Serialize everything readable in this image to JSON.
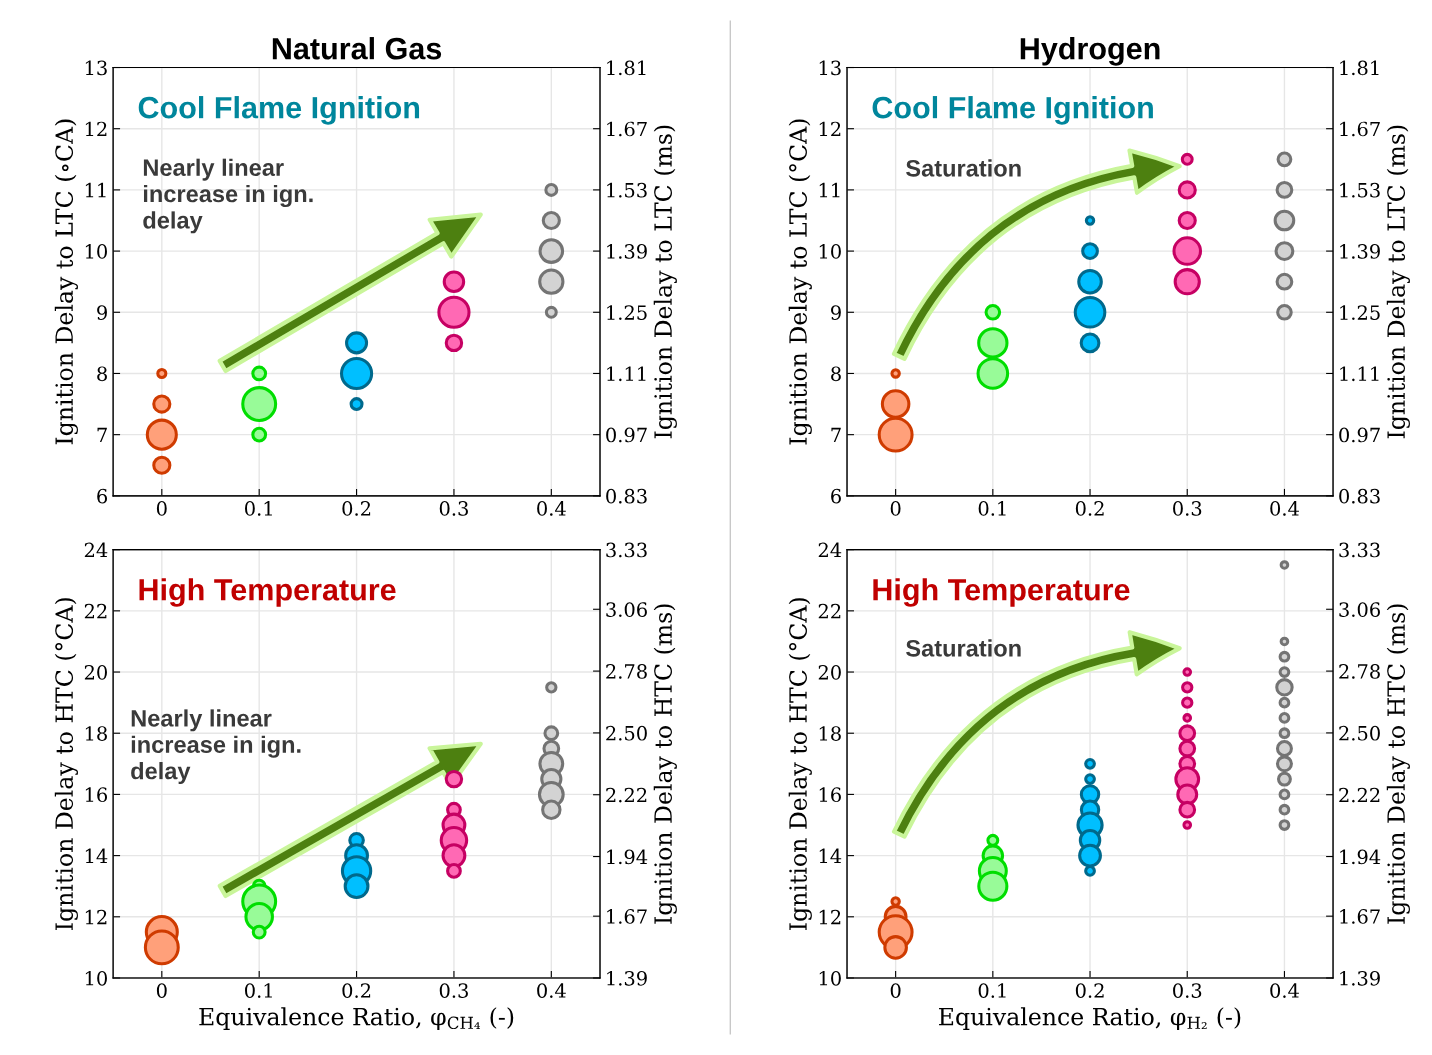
{
  "chart_data": [
    {
      "type": "bubble",
      "title": "Natural Gas",
      "ylabel": "Ignition Delay to LTC (∘CA)",
      "y2label": "Ignition Delay to LTC (ms)",
      "annotations": [
        "Cool Flame Ignition",
        "Nearly linear\nincrease in ign.\ndelay"
      ],
      "xlim": [
        -0.05,
        0.45
      ],
      "xticks": [
        0,
        0.1,
        0.2,
        0.3,
        0.4
      ],
      "ylim": [
        6,
        13
      ],
      "yticks": [
        6,
        7,
        8,
        9,
        10,
        11,
        12,
        13
      ],
      "y2lim": [
        0.83,
        1.81
      ],
      "y2ticks": [
        {
          "value": 0.83,
          "label": "0.83"
        },
        {
          "value": 0.97,
          "label": "0.97"
        },
        {
          "value": 1.11,
          "label": "1.11"
        },
        {
          "value": 1.25,
          "label": "1.25"
        },
        {
          "value": 1.39,
          "label": "1.39"
        },
        {
          "value": 1.53,
          "label": "1.53"
        },
        {
          "value": 1.67,
          "label": "1.67"
        },
        {
          "value": 1.81,
          "label": "1.81"
        }
      ],
      "grid": true,
      "series": [
        {
          "color": "#ffa07a",
          "x": [
            0,
            0,
            0,
            0
          ],
          "values": [
            8,
            7.5,
            7,
            6.5
          ],
          "sizes": [
            0.06,
            0.24,
            0.78,
            0.24
          ]
        },
        {
          "color": "#98fb98",
          "x": [
            0.1,
            0.1,
            0.1
          ],
          "values": [
            8,
            7.5,
            7
          ],
          "sizes": [
            0.15,
            1,
            0.15
          ]
        },
        {
          "color": "#00bfff",
          "x": [
            0.2,
            0.2,
            0.2
          ],
          "values": [
            8.5,
            8,
            7.5
          ],
          "sizes": [
            0.37,
            0.84,
            0.11
          ]
        },
        {
          "color": "#ff69b4",
          "x": [
            0.3,
            0.3,
            0.3
          ],
          "values": [
            9.5,
            9,
            8.5
          ],
          "sizes": [
            0.35,
            0.84,
            0.22
          ]
        },
        {
          "color": "#d3d3d3",
          "x": [
            0.4,
            0.4,
            0.4,
            0.4,
            0.4
          ],
          "values": [
            11,
            10.5,
            10,
            9.5,
            9
          ],
          "sizes": [
            0.11,
            0.24,
            0.47,
            0.5,
            0.09
          ]
        }
      ]
    },
    {
      "type": "bubble",
      "title": "Hydrogen",
      "ylabel": "Ignition Delay to LTC (°CA)",
      "y2label": "Ignition Delay to LTC (ms)",
      "annotations": [
        "Cool Flame Ignition",
        "Saturation"
      ],
      "xlim": [
        -0.05,
        0.45
      ],
      "xticks": [
        0,
        0.1,
        0.2,
        0.3,
        0.4
      ],
      "ylim": [
        6,
        13
      ],
      "yticks": [
        6,
        7,
        8,
        9,
        10,
        11,
        12,
        13
      ],
      "y2lim": [
        0.83,
        1.81
      ],
      "y2ticks": [
        {
          "value": 0.83,
          "label": "0.83"
        },
        {
          "value": 0.97,
          "label": "0.97"
        },
        {
          "value": 1.11,
          "label": "1.11"
        },
        {
          "value": 1.25,
          "label": "1.25"
        },
        {
          "value": 1.39,
          "label": "1.39"
        },
        {
          "value": 1.53,
          "label": "1.53"
        },
        {
          "value": 1.67,
          "label": "1.67"
        },
        {
          "value": 1.81,
          "label": "1.81"
        }
      ],
      "grid": true,
      "series": [
        {
          "color": "#ffa07a",
          "x": [
            0,
            0,
            0
          ],
          "values": [
            8,
            7.5,
            7
          ],
          "sizes": [
            0.05,
            0.65,
            1
          ]
        },
        {
          "color": "#98fb98",
          "x": [
            0.1,
            0.1,
            0.1
          ],
          "values": [
            9,
            8.5,
            8
          ],
          "sizes": [
            0.17,
            0.74,
            0.81
          ]
        },
        {
          "color": "#00bfff",
          "x": [
            0.2,
            0.2,
            0.2,
            0.2,
            0.2
          ],
          "values": [
            10.5,
            10,
            9.5,
            9,
            8.5
          ],
          "sizes": [
            0.05,
            0.2,
            0.47,
            0.81,
            0.29
          ]
        },
        {
          "color": "#ff69b4",
          "x": [
            0.3,
            0.3,
            0.3,
            0.3,
            0.3
          ],
          "values": [
            11.5,
            11,
            10.5,
            10,
            9.5
          ],
          "sizes": [
            0.09,
            0.24,
            0.24,
            0.65,
            0.54
          ]
        },
        {
          "color": "#d3d3d3",
          "x": [
            0.4,
            0.4,
            0.4,
            0.4,
            0.4,
            0.4
          ],
          "values": [
            11.5,
            11,
            10.5,
            10,
            9.5,
            9
          ],
          "sizes": [
            0.15,
            0.2,
            0.32,
            0.26,
            0.2,
            0.17
          ]
        }
      ]
    },
    {
      "type": "bubble",
      "ylabel": "Ignition Delay to HTC (°CA)",
      "y2label": "Ignition Delay to HTC (ms)",
      "xlabel": "Equivalence Ratio, φ$_{CH₄}$ (-)",
      "annotations": [
        "High Temperature",
        "Nearly linear\nincrease in ign.\ndelay"
      ],
      "xlim": [
        -0.05,
        0.45
      ],
      "xticks": [
        0,
        0.1,
        0.2,
        0.3,
        0.4
      ],
      "ylim": [
        10,
        24
      ],
      "yticks": [
        10,
        12,
        14,
        16,
        18,
        20,
        22,
        24
      ],
      "y2lim": [
        1.39,
        3.33
      ],
      "y2ticks": [
        1.39,
        1.67,
        1.94,
        2.22,
        {
          "value": 2.5,
          "label": "2.50"
        },
        2.78,
        3.06,
        3.33
      ],
      "grid": true,
      "series": [
        {
          "color": "#ffa07a",
          "x": [
            0,
            0
          ],
          "values": [
            11.5,
            11
          ],
          "sizes": [
            0.89,
            1
          ]
        },
        {
          "color": "#98fb98",
          "x": [
            0.1,
            0.1,
            0.1,
            0.1
          ],
          "values": [
            13,
            12.5,
            12,
            11.5
          ],
          "sizes": [
            0.13,
            1,
            0.65,
            0.13
          ]
        },
        {
          "color": "#00bfff",
          "x": [
            0.2,
            0.2,
            0.2,
            0.2
          ],
          "values": [
            14.5,
            14,
            13.5,
            13
          ],
          "sizes": [
            0.17,
            0.44,
            0.74,
            0.48
          ]
        },
        {
          "color": "#ff69b4",
          "x": [
            0.3,
            0.3,
            0.3,
            0.3,
            0.3,
            0.3
          ],
          "values": [
            16.5,
            15.5,
            15,
            14.5,
            14,
            13.5
          ],
          "sizes": [
            0.22,
            0.15,
            0.44,
            0.6,
            0.44,
            0.15
          ]
        },
        {
          "color": "#d3d3d3",
          "x": [
            0.4,
            0.4,
            0.4,
            0.4,
            0.4,
            0.4,
            0.4
          ],
          "values": [
            19.5,
            18,
            17.5,
            17,
            16.5,
            16,
            15.5
          ],
          "sizes": [
            0.08,
            0.15,
            0.2,
            0.48,
            0.34,
            0.52,
            0.28
          ]
        }
      ]
    },
    {
      "type": "bubble",
      "ylabel": "Ignition Delay to HTC (°CA)",
      "y2label": "Ignition Delay to HTC (ms)",
      "xlabel": "Equivalence Ratio, φ$_{H₂}$ (-)",
      "annotations": [
        "High Temperature",
        "Saturation"
      ],
      "xlim": [
        -0.05,
        0.45
      ],
      "xticks": [
        0,
        0.1,
        0.2,
        0.3,
        0.4
      ],
      "ylim": [
        10,
        24
      ],
      "yticks": [
        10,
        12,
        14,
        16,
        18,
        20,
        22,
        24
      ],
      "y2lim": [
        1.39,
        3.33
      ],
      "y2ticks": [
        1.39,
        1.67,
        1.94,
        2.22,
        {
          "value": 2.5,
          "label": "2.50"
        },
        2.78,
        3.06,
        3.33
      ],
      "grid": true,
      "series": [
        {
          "color": "#ffa07a",
          "x": [
            0,
            0,
            0,
            0
          ],
          "values": [
            12.5,
            12,
            11.5,
            11
          ],
          "sizes": [
            0.05,
            0.4,
            1,
            0.43
          ]
        },
        {
          "color": "#98fb98",
          "x": [
            0.1,
            0.1,
            0.1,
            0.1
          ],
          "values": [
            14.5,
            14,
            13.5,
            13
          ],
          "sizes": [
            0.09,
            0.35,
            0.67,
            0.73
          ]
        },
        {
          "color": "#00bfff",
          "x": [
            0.2,
            0.2,
            0.2,
            0.2,
            0.2,
            0.2,
            0.2,
            0.2
          ],
          "values": [
            17,
            16.5,
            16,
            15.5,
            15,
            14.5,
            14,
            13.5
          ],
          "sizes": [
            0.07,
            0.07,
            0.28,
            0.28,
            0.54,
            0.35,
            0.4,
            0.07
          ]
        },
        {
          "color": "#ff69b4",
          "x": [
            0.3,
            0.3,
            0.3,
            0.3,
            0.3,
            0.3,
            0.3,
            0.3,
            0.3,
            0.3,
            0.3
          ],
          "values": [
            20,
            19.5,
            19,
            18.5,
            18,
            17.5,
            17,
            16.5,
            16,
            15.5,
            15
          ],
          "sizes": [
            0.04,
            0.08,
            0.08,
            0.04,
            0.2,
            0.2,
            0.2,
            0.48,
            0.33,
            0.2,
            0.04
          ]
        },
        {
          "color": "#d3d3d3",
          "x": [
            0.4,
            0.4,
            0.4,
            0.4,
            0.4,
            0.4,
            0.4,
            0.4,
            0.4,
            0.4,
            0.4,
            0.4,
            0.4,
            0.4
          ],
          "values": [
            23.5,
            21,
            20.5,
            20,
            19.5,
            19,
            18.5,
            18,
            17.5,
            17,
            16.5,
            16,
            15.5,
            15
          ],
          "sizes": [
            0.04,
            0.04,
            0.07,
            0.07,
            0.22,
            0.07,
            0.07,
            0.07,
            0.18,
            0.18,
            0.13,
            0.07,
            0.07,
            0.07
          ]
        }
      ]
    }
  ]
}
